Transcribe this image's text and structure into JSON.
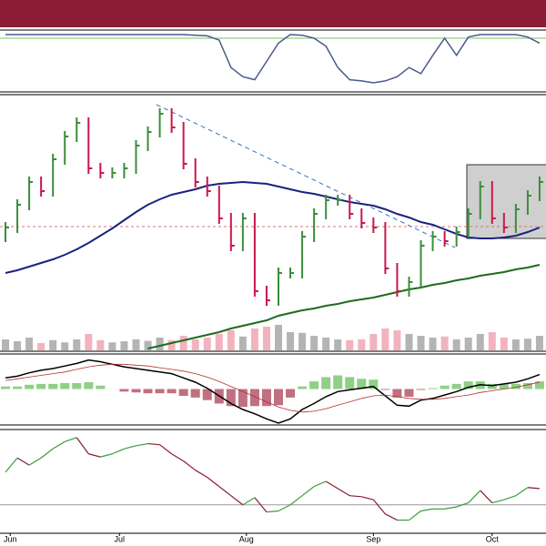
{
  "chart_data": [
    {
      "type": "line",
      "xlim": [
        0,
        46
      ],
      "ylim": [
        0,
        100
      ],
      "color": "#4a5a8a",
      "ref": 88,
      "ref_color": "#7cbf6a",
      "values": [
        94,
        94,
        94,
        94,
        94,
        94,
        94,
        94,
        94,
        94,
        94,
        94,
        94,
        94,
        94,
        94,
        93,
        92,
        85,
        40,
        25,
        20,
        50,
        80,
        94,
        93,
        88,
        75,
        40,
        20,
        18,
        15,
        18,
        25,
        40,
        30,
        60,
        88,
        60,
        90,
        94,
        94,
        94,
        94,
        90,
        80
      ]
    },
    {
      "type": "hlc",
      "xlim": [
        0,
        46
      ],
      "ylim": [
        0,
        280
      ],
      "up_color": "#3c8c3c",
      "down_color": "#c8184c",
      "high": [
        141,
        166,
        191,
        191,
        216,
        241,
        256,
        256,
        206,
        201,
        206,
        231,
        246,
        266,
        266,
        251,
        211,
        191,
        181,
        151,
        151,
        151,
        71,
        91,
        91,
        131,
        156,
        171,
        171,
        171,
        156,
        146,
        141,
        96,
        81,
        121,
        131,
        131,
        136,
        156,
        186,
        186,
        151,
        161,
        176,
        191
      ],
      "low": [
        119,
        129,
        154,
        169,
        169,
        204,
        229,
        194,
        189,
        189,
        189,
        194,
        219,
        234,
        239,
        199,
        179,
        169,
        139,
        109,
        109,
        59,
        49,
        49,
        79,
        79,
        119,
        144,
        159,
        144,
        134,
        129,
        84,
        59,
        59,
        69,
        109,
        114,
        114,
        124,
        144,
        139,
        129,
        129,
        149,
        164
      ],
      "close": [
        135,
        160,
        185,
        175,
        210,
        235,
        250,
        200,
        195,
        195,
        200,
        225,
        240,
        260,
        245,
        205,
        185,
        175,
        145,
        115,
        145,
        65,
        55,
        85,
        85,
        125,
        150,
        165,
        165,
        150,
        140,
        135,
        90,
        65,
        75,
        115,
        125,
        120,
        130,
        150,
        180,
        145,
        135,
        155,
        170,
        185
      ],
      "series": [
        {
          "color": "#1a237e",
          "values": [
            85,
            88,
            92,
            96,
            100,
            105,
            111,
            118,
            126,
            134,
            143,
            152,
            160,
            166,
            171,
            174,
            177,
            181,
            183,
            184,
            185,
            184,
            183,
            180,
            177,
            174,
            172,
            169,
            166,
            163,
            161,
            159,
            155,
            150,
            146,
            141,
            138,
            133,
            128,
            124,
            123,
            123,
            124,
            126,
            130,
            135
          ]
        },
        {
          "color": "#1e6b1e",
          "values": [
            null,
            null,
            null,
            null,
            null,
            null,
            null,
            null,
            null,
            null,
            null,
            null,
            2,
            5,
            8,
            11,
            14,
            17,
            20,
            24,
            27,
            30,
            33,
            38,
            41,
            44,
            46,
            49,
            51,
            54,
            56,
            58,
            61,
            64,
            67,
            69,
            72,
            74,
            77,
            79,
            82,
            84,
            86,
            89,
            91,
            94
          ]
        }
      ],
      "volume": {
        "ylim": [
          0,
          100
        ],
        "up_color": "#b4b4b4",
        "down_color": "#f2b3bd",
        "values": [
          30,
          25,
          35,
          20,
          28,
          22,
          30,
          45,
          28,
          22,
          25,
          30,
          26,
          35,
          28,
          40,
          30,
          35,
          45,
          55,
          38,
          60,
          65,
          70,
          50,
          48,
          40,
          35,
          30,
          28,
          30,
          45,
          60,
          55,
          45,
          40,
          35,
          38,
          30,
          35,
          45,
          50,
          35,
          30,
          32,
          40
        ]
      }
    },
    {
      "type": "macd",
      "xlim": [
        0,
        46
      ],
      "ylim": [
        -40,
        40
      ],
      "series": [
        {
          "color": "#000000",
          "values": [
            13,
            15,
            19,
            22,
            24,
            27,
            30,
            34,
            32,
            29,
            26,
            24,
            22,
            20,
            18,
            13,
            8,
            1,
            -8,
            -17,
            -24,
            -29,
            -35,
            -40,
            -35,
            -24,
            -17,
            -9,
            -3,
            -1,
            1,
            3,
            -8,
            -19,
            -20,
            -13,
            -11,
            -7,
            -3,
            2,
            5,
            4,
            6,
            8,
            12,
            17
          ]
        },
        {
          "color": "#b03030",
          "values": [
            10,
            12,
            14,
            16,
            18,
            20,
            23,
            26,
            28,
            29,
            29,
            28,
            27,
            25,
            23,
            21,
            18,
            14,
            9,
            3,
            -3,
            -9,
            -15,
            -21,
            -25,
            -27,
            -26,
            -23,
            -19,
            -15,
            -11,
            -8,
            -7,
            -9,
            -11,
            -12,
            -12,
            -11,
            -9,
            -7,
            -4,
            -2,
            0,
            2,
            5,
            8
          ]
        }
      ],
      "histogram": {
        "up_color": "#8fcf86",
        "down_color": "#c07080",
        "values": [
          3,
          3,
          5,
          6,
          6,
          7,
          7,
          8,
          4,
          0,
          -3,
          -4,
          -5,
          -5,
          -5,
          -8,
          -10,
          -13,
          -17,
          -20,
          -21,
          -20,
          -20,
          -19,
          -10,
          3,
          9,
          14,
          16,
          14,
          12,
          11,
          -1,
          -10,
          -9,
          -1,
          1,
          4,
          6,
          9,
          9,
          6,
          6,
          6,
          7,
          9
        ]
      }
    },
    {
      "type": "line2",
      "xlim": [
        0,
        46
      ],
      "ylim": [
        0,
        100
      ],
      "ref": 27,
      "ref_color": "#999999",
      "up_color": "#3c9c3c",
      "down_color": "#8b1a35",
      "values": [
        59,
        73,
        66,
        73,
        82,
        89,
        93,
        77,
        74,
        77,
        82,
        85,
        87,
        86,
        77,
        70,
        61,
        54,
        45,
        36,
        27,
        34,
        20,
        21,
        27,
        36,
        45,
        50,
        43,
        36,
        35,
        32,
        18,
        12,
        12,
        21,
        23,
        23,
        25,
        29,
        41,
        29,
        32,
        36,
        44,
        43
      ],
      "xticks": [
        {
          "value": 0.4,
          "label": "Jun"
        },
        {
          "value": 9.6,
          "label": "Jul"
        },
        {
          "value": 20.3,
          "label": "Aug"
        },
        {
          "value": 31,
          "label": "Sep"
        },
        {
          "value": 41,
          "label": "Oct"
        }
      ]
    }
  ]
}
